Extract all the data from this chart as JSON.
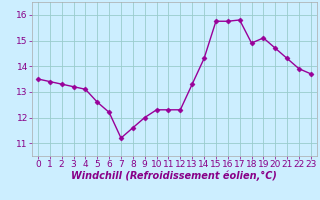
{
  "x": [
    0,
    1,
    2,
    3,
    4,
    5,
    6,
    7,
    8,
    9,
    10,
    11,
    12,
    13,
    14,
    15,
    16,
    17,
    18,
    19,
    20,
    21,
    22,
    23
  ],
  "y": [
    13.5,
    13.4,
    13.3,
    13.2,
    13.1,
    12.6,
    12.2,
    11.2,
    11.6,
    12.0,
    12.3,
    12.3,
    12.3,
    13.3,
    14.3,
    15.75,
    15.75,
    15.8,
    14.9,
    15.1,
    14.7,
    14.3,
    13.9,
    13.7
  ],
  "line_color": "#990099",
  "marker": "D",
  "marker_size": 2.5,
  "bg_color": "#cceeff",
  "grid_color": "#99cccc",
  "xlabel_text": "Windchill (Refroidissement éolien,°C)",
  "ylim": [
    10.5,
    16.5
  ],
  "xlim": [
    -0.5,
    23.5
  ],
  "yticks": [
    11,
    12,
    13,
    14,
    15,
    16
  ],
  "xticks": [
    0,
    1,
    2,
    3,
    4,
    5,
    6,
    7,
    8,
    9,
    10,
    11,
    12,
    13,
    14,
    15,
    16,
    17,
    18,
    19,
    20,
    21,
    22,
    23
  ],
  "tick_fontsize": 6.5,
  "label_fontsize": 7.0,
  "line_width": 1.0,
  "tick_color": "#880088",
  "label_color": "#880088"
}
